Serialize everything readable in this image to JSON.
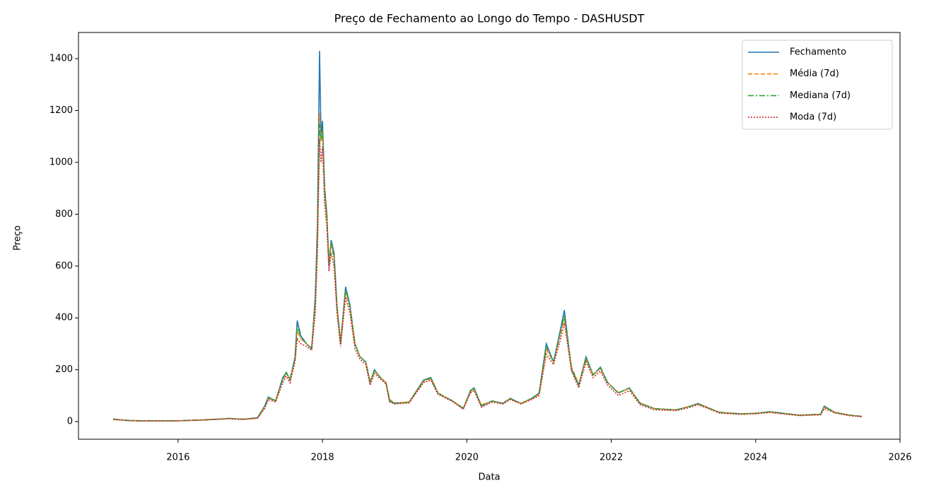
{
  "chart_data": {
    "type": "line",
    "title": "Preço de Fechamento ao Longo do Tempo - DASHUSDT",
    "x_label": "Data",
    "y_label": "Preço",
    "x": [
      2015.1,
      2015.3,
      2015.5,
      2015.8,
      2016.0,
      2016.3,
      2016.6,
      2016.7,
      2016.9,
      2017.1,
      2017.2,
      2017.25,
      2017.35,
      2017.45,
      2017.5,
      2017.55,
      2017.62,
      2017.65,
      2017.7,
      2017.78,
      2017.85,
      2017.9,
      2017.93,
      2017.96,
      2017.98,
      2018.0,
      2018.03,
      2018.06,
      2018.09,
      2018.12,
      2018.16,
      2018.2,
      2018.25,
      2018.32,
      2018.38,
      2018.45,
      2018.52,
      2018.6,
      2018.66,
      2018.72,
      2018.8,
      2018.88,
      2018.93,
      2019.0,
      2019.2,
      2019.4,
      2019.5,
      2019.6,
      2019.8,
      2019.95,
      2020.05,
      2020.1,
      2020.2,
      2020.35,
      2020.5,
      2020.6,
      2020.75,
      2020.9,
      2021.0,
      2021.1,
      2021.2,
      2021.3,
      2021.35,
      2021.45,
      2021.55,
      2021.65,
      2021.75,
      2021.85,
      2021.95,
      2022.1,
      2022.25,
      2022.4,
      2022.6,
      2022.9,
      2023.1,
      2023.2,
      2023.5,
      2023.8,
      2024.0,
      2024.2,
      2024.6,
      2024.9,
      2024.95,
      2025.1,
      2025.3,
      2025.47
    ],
    "series": [
      {
        "name": "Fechamento",
        "color": "#1f77b4",
        "style": "solid",
        "values": [
          10,
          4,
          3,
          3,
          3,
          6,
          10,
          12,
          9,
          15,
          60,
          95,
          80,
          170,
          190,
          160,
          250,
          390,
          330,
          300,
          280,
          480,
          760,
          1430,
          1100,
          1160,
          900,
          800,
          600,
          700,
          650,
          450,
          300,
          520,
          450,
          300,
          250,
          230,
          150,
          200,
          170,
          150,
          80,
          70,
          75,
          160,
          170,
          110,
          80,
          50,
          120,
          130,
          60,
          80,
          70,
          90,
          70,
          90,
          110,
          300,
          230,
          360,
          430,
          200,
          140,
          250,
          180,
          210,
          150,
          110,
          130,
          70,
          50,
          45,
          60,
          70,
          35,
          30,
          32,
          38,
          25,
          28,
          60,
          35,
          25,
          20
        ]
      },
      {
        "name": "Média (7d)",
        "color": "#ff7f0e",
        "style": "dashed",
        "values": [
          9,
          5,
          3,
          3,
          3,
          6,
          10,
          12,
          9,
          14,
          55,
          90,
          82,
          160,
          185,
          165,
          240,
          350,
          320,
          300,
          285,
          450,
          700,
          1190,
          1080,
          1120,
          880,
          780,
          620,
          680,
          630,
          440,
          310,
          500,
          440,
          300,
          250,
          230,
          155,
          195,
          170,
          150,
          85,
          72,
          75,
          155,
          165,
          110,
          80,
          52,
          115,
          125,
          65,
          78,
          70,
          88,
          70,
          88,
          105,
          280,
          230,
          340,
          400,
          210,
          145,
          240,
          180,
          205,
          150,
          112,
          128,
          72,
          50,
          45,
          60,
          68,
          36,
          30,
          32,
          37,
          25,
          28,
          55,
          36,
          25,
          20
        ]
      },
      {
        "name": "Mediana (7d)",
        "color": "#2ca02c",
        "style": "dashdot",
        "values": [
          9,
          5,
          3,
          3,
          3,
          6,
          10,
          12,
          9,
          14,
          58,
          92,
          80,
          165,
          188,
          162,
          245,
          370,
          325,
          300,
          282,
          460,
          730,
          1150,
          1090,
          1130,
          890,
          790,
          610,
          690,
          640,
          445,
          305,
          510,
          445,
          300,
          250,
          230,
          152,
          198,
          170,
          150,
          82,
          71,
          75,
          158,
          168,
          110,
          80,
          51,
          118,
          128,
          62,
          79,
          70,
          89,
          70,
          89,
          108,
          290,
          230,
          350,
          410,
          205,
          142,
          245,
          180,
          208,
          150,
          111,
          129,
          71,
          50,
          45,
          60,
          69,
          35,
          30,
          32,
          38,
          25,
          28,
          58,
          35,
          25,
          20
        ]
      },
      {
        "name": "Moda (7d)",
        "color": "#d62728",
        "style": "dotted",
        "values": [
          8,
          4,
          2,
          3,
          3,
          5,
          10,
          11,
          8,
          13,
          50,
          85,
          75,
          150,
          175,
          150,
          230,
          320,
          300,
          290,
          275,
          420,
          650,
          1090,
          1000,
          1060,
          840,
          750,
          580,
          650,
          600,
          420,
          290,
          480,
          420,
          280,
          240,
          220,
          140,
          185,
          165,
          145,
          75,
          68,
          72,
          150,
          160,
          105,
          78,
          48,
          110,
          120,
          55,
          75,
          68,
          85,
          68,
          85,
          100,
          260,
          220,
          320,
          380,
          195,
          130,
          230,
          170,
          195,
          140,
          100,
          120,
          65,
          45,
          42,
          55,
          65,
          33,
          28,
          30,
          35,
          23,
          26,
          50,
          33,
          23,
          19
        ]
      }
    ],
    "xlim": [
      2014.62,
      2026
    ],
    "xticks": [
      2016,
      2018,
      2020,
      2022,
      2024,
      2026
    ],
    "ylim": [
      -68,
      1501
    ],
    "yticks": [
      0,
      200,
      400,
      600,
      800,
      1000,
      1200,
      1400
    ],
    "legend": "upper right"
  }
}
